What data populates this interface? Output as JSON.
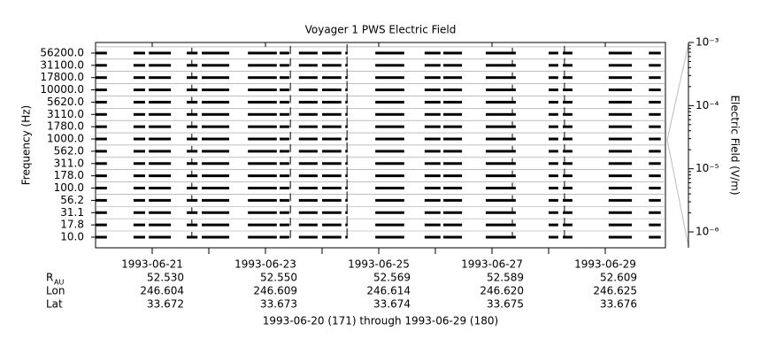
{
  "chart_data": {
    "type": "channels",
    "title": "Voyager 1 PWS Electric Field",
    "ylabel": "Frequency (Hz)",
    "y2label": "Electric Field (V/m)",
    "footer": "1993-06-20 (171) through 1993-06-29 (180)",
    "channels": [
      {
        "value": 10,
        "label": "10.0"
      },
      {
        "value": 17.8,
        "label": "17.8"
      },
      {
        "value": 31.1,
        "label": "31.1"
      },
      {
        "value": 56.2,
        "label": "56.2"
      },
      {
        "value": 100,
        "label": "100.0"
      },
      {
        "value": 178,
        "label": "178.0"
      },
      {
        "value": 311,
        "label": "311.0"
      },
      {
        "value": 562,
        "label": "562.0"
      },
      {
        "value": 1000,
        "label": "1000.0"
      },
      {
        "value": 1780,
        "label": "1780.0"
      },
      {
        "value": 3110,
        "label": "3110.0"
      },
      {
        "value": 5620,
        "label": "5620.0"
      },
      {
        "value": 10000,
        "label": "10000.0"
      },
      {
        "value": 17800,
        "label": "17800.0"
      },
      {
        "value": 31100,
        "label": "31100.0"
      },
      {
        "value": 56200,
        "label": "56200.0"
      }
    ],
    "xlim": [
      0,
      10
    ],
    "xticks": [
      {
        "value": 1,
        "label": "1993-06-21"
      },
      {
        "value": 3,
        "label": "1993-06-23"
      },
      {
        "value": 5,
        "label": "1993-06-25"
      },
      {
        "value": 7,
        "label": "1993-06-27"
      },
      {
        "value": 9,
        "label": "1993-06-29"
      }
    ],
    "xminorticks": [
      2,
      4,
      6,
      8
    ],
    "coverage": [
      [
        0,
        0.2
      ],
      [
        0.67,
        0.875
      ],
      [
        0.94,
        1.33
      ],
      [
        1.61,
        1.8
      ],
      [
        1.875,
        2.36
      ],
      [
        2.69,
        3.2
      ],
      [
        3.25,
        3.42
      ],
      [
        3.59,
        3.92
      ],
      [
        4.0,
        4.34
      ],
      [
        4.41,
        4.45
      ],
      [
        4.94,
        5.45
      ],
      [
        5.81,
        6.09
      ],
      [
        6.14,
        6.47
      ],
      [
        6.89,
        7.42
      ],
      [
        8.0,
        8.17
      ],
      [
        8.25,
        8.42
      ],
      [
        9.06,
        9.47
      ],
      [
        9.77,
        9.98
      ]
    ],
    "bursts": [
      1.7,
      3.44,
      4.44,
      7.36,
      8.28
    ],
    "y2lim": [
      5.6e-07,
      0.001
    ],
    "y2scale": "log",
    "y2ticks": [
      {
        "value": 1e-06,
        "label": "10⁻⁶"
      },
      {
        "value": 1e-05,
        "label": "10⁻⁵"
      },
      {
        "value": 0.0001,
        "label": "10⁻⁴"
      },
      {
        "value": 0.001,
        "label": "10⁻³"
      }
    ],
    "color": "#000000",
    "ephemeris": [
      {
        "label": "R",
        "sub": "AU",
        "values": [
          "52.530",
          "52.550",
          "52.569",
          "52.589",
          "52.609"
        ]
      },
      {
        "label": "Lon",
        "values": [
          "246.604",
          "246.609",
          "246.614",
          "246.620",
          "246.625"
        ]
      },
      {
        "label": "Lat",
        "values": [
          "33.672",
          "33.673",
          "33.674",
          "33.675",
          "33.676"
        ]
      }
    ]
  }
}
